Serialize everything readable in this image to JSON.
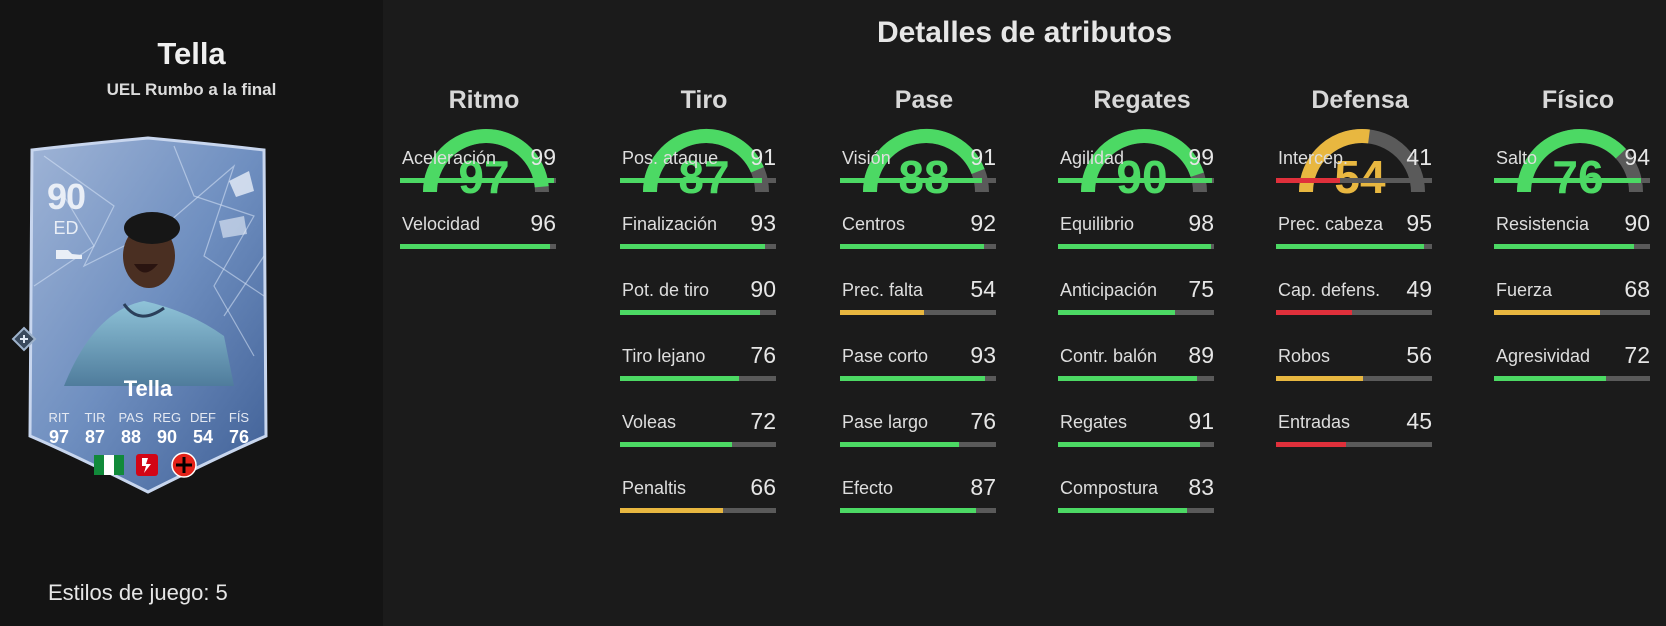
{
  "player": {
    "name": "Tella",
    "subtitle": "UEL Rumbo a la final",
    "card_rating": "90",
    "card_position": "ED",
    "card_name": "Tella",
    "card_stats": [
      {
        "label": "RIT",
        "value": "97"
      },
      {
        "label": "TIR",
        "value": "87"
      },
      {
        "label": "PAS",
        "value": "88"
      },
      {
        "label": "REG",
        "value": "90"
      },
      {
        "label": "DEF",
        "value": "54"
      },
      {
        "label": "FÍS",
        "value": "76"
      }
    ],
    "playstyles": "Estilos de juego: 5"
  },
  "details_title": "Detalles de atributos",
  "colors": {
    "green": "#4cd964",
    "yellow": "#e8b740",
    "red": "#e0303b",
    "track": "#5a5a5a"
  },
  "categories": [
    {
      "name": "Ritmo",
      "value": 97,
      "stats": [
        {
          "label": "Aceleración",
          "value": 99
        },
        {
          "label": "Velocidad",
          "value": 96
        }
      ]
    },
    {
      "name": "Tiro",
      "value": 87,
      "stats": [
        {
          "label": "Pos. ataque",
          "value": 91
        },
        {
          "label": "Finalización",
          "value": 93
        },
        {
          "label": "Pot. de tiro",
          "value": 90
        },
        {
          "label": "Tiro lejano",
          "value": 76
        },
        {
          "label": "Voleas",
          "value": 72
        },
        {
          "label": "Penaltis",
          "value": 66
        }
      ]
    },
    {
      "name": "Pase",
      "value": 88,
      "stats": [
        {
          "label": "Visión",
          "value": 91
        },
        {
          "label": "Centros",
          "value": 92
        },
        {
          "label": "Prec. falta",
          "value": 54
        },
        {
          "label": "Pase corto",
          "value": 93
        },
        {
          "label": "Pase largo",
          "value": 76
        },
        {
          "label": "Efecto",
          "value": 87
        }
      ]
    },
    {
      "name": "Regates",
      "value": 90,
      "stats": [
        {
          "label": "Agilidad",
          "value": 99
        },
        {
          "label": "Equilibrio",
          "value": 98
        },
        {
          "label": "Anticipación",
          "value": 75
        },
        {
          "label": "Contr. balón",
          "value": 89
        },
        {
          "label": "Regates",
          "value": 91
        },
        {
          "label": "Compostura",
          "value": 83
        }
      ]
    },
    {
      "name": "Defensa",
      "value": 54,
      "stats": [
        {
          "label": "Intercep.",
          "value": 41
        },
        {
          "label": "Prec. cabeza",
          "value": 95
        },
        {
          "label": "Cap. defens.",
          "value": 49
        },
        {
          "label": "Robos",
          "value": 56
        },
        {
          "label": "Entradas",
          "value": 45
        }
      ]
    },
    {
      "name": "Físico",
      "value": 76,
      "stats": [
        {
          "label": "Salto",
          "value": 94
        },
        {
          "label": "Resistencia",
          "value": 90
        },
        {
          "label": "Fuerza",
          "value": 68
        },
        {
          "label": "Agresividad",
          "value": 72
        }
      ]
    }
  ]
}
